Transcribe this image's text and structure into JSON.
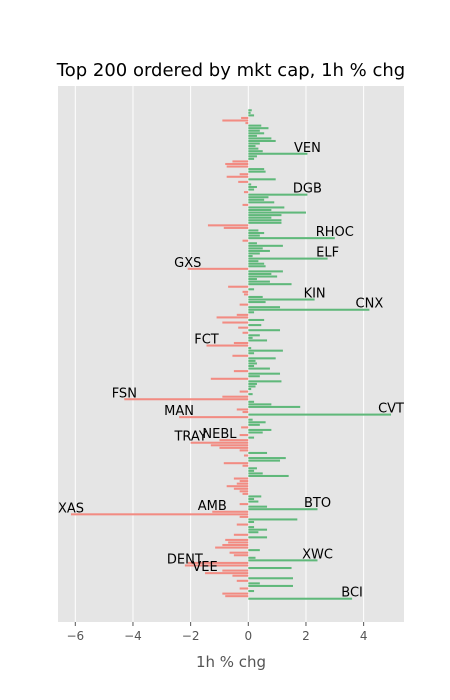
{
  "chart_data": {
    "type": "bar",
    "orientation": "horizontal",
    "title": "Top 200 ordered by mkt cap, 1h % chg",
    "xlabel": "1h % chg",
    "ylabel": "",
    "xlim": [
      -6.6,
      5.4
    ],
    "xticks": [
      -6,
      -4,
      -2,
      0,
      2,
      4
    ],
    "xtick_labels": [
      "−6",
      "−4",
      "−2",
      "0",
      "2",
      "4"
    ],
    "grid": true,
    "colors": {
      "positive": "#5fb87a",
      "negative": "#f28b82",
      "background": "#e5e5e5",
      "grid": "#ffffff"
    },
    "values": [
      0.12,
      0.08,
      0.2,
      -0.25,
      -0.9,
      -0.1,
      0.45,
      0.7,
      0.4,
      0.55,
      0.3,
      0.8,
      0.95,
      0.4,
      0.25,
      0.35,
      0.5,
      2.05,
      0.3,
      0.2,
      -0.55,
      -0.8,
      -0.75,
      0.55,
      0.6,
      -0.3,
      -0.75,
      0.95,
      -0.35,
      0.1,
      0.3,
      0.2,
      -0.15,
      2.05,
      0.7,
      0.55,
      0.9,
      -0.2,
      1.25,
      0.8,
      2.0,
      1.15,
      0.8,
      1.15,
      1.15,
      -1.4,
      -0.85,
      0.35,
      0.55,
      0.4,
      3.0,
      -0.2,
      0.3,
      1.2,
      0.5,
      0.75,
      0.4,
      0.15,
      2.75,
      0.35,
      0.55,
      0.6,
      -2.1,
      1.2,
      0.8,
      1.0,
      0.3,
      0.75,
      1.5,
      -0.7,
      0.2,
      -0.2,
      -0.15,
      0.5,
      2.3,
      0.6,
      -0.3,
      1.1,
      4.2,
      0.2,
      -0.4,
      -1.1,
      0.55,
      -0.9,
      0.45,
      -0.35,
      1.1,
      -0.2,
      0.4,
      0.15,
      0.65,
      -0.5,
      -1.45,
      0.1,
      1.2,
      0.2,
      -0.55,
      0.95,
      0.25,
      0.3,
      0.2,
      0.75,
      -0.5,
      1.1,
      0.4,
      -1.3,
      1.15,
      0.3,
      0.25,
      0.1,
      -0.3,
      0.15,
      -0.9,
      -4.3,
      0.2,
      0.8,
      1.8,
      -0.4,
      -0.2,
      4.95,
      -2.4,
      0.15,
      0.6,
      0.4,
      -0.25,
      0.8,
      0.5,
      -0.3,
      0.2,
      -1.0,
      -2.0,
      -1.3,
      -1.0,
      -0.3,
      0.65,
      -0.15,
      1.3,
      1.1,
      -0.85,
      -0.2,
      0.3,
      0.2,
      0.5,
      1.4,
      -0.5,
      -0.3,
      -0.4,
      -0.75,
      -0.5,
      -0.3,
      -0.2,
      0.45,
      0.2,
      0.35,
      -0.3,
      0.65,
      2.4,
      -1.25,
      -6.15,
      -0.3,
      1.7,
      0.2,
      -0.4,
      0.2,
      0.65,
      0.35,
      -0.5,
      0.65,
      -0.8,
      -0.7,
      -0.9,
      -1.15,
      0.4,
      -0.65,
      -0.5,
      0.25,
      2.4,
      -2.1,
      -2.2,
      1.5,
      -0.9,
      -1.5,
      -0.55,
      1.55,
      -0.4,
      0.4,
      1.55,
      -0.3,
      0.2,
      -0.9,
      -0.8,
      3.6
    ],
    "labeled_points": [
      {
        "index": 17,
        "text": "VEN",
        "value": 2.05
      },
      {
        "index": 33,
        "text": "DGB",
        "value": 2.05
      },
      {
        "index": 50,
        "text": "RHOC",
        "value": 3.0
      },
      {
        "index": 58,
        "text": "ELF",
        "value": 2.75
      },
      {
        "index": 62,
        "text": "GXS",
        "value": -2.1
      },
      {
        "index": 74,
        "text": "KIN",
        "value": 2.3
      },
      {
        "index": 78,
        "text": "CNX",
        "value": 4.2
      },
      {
        "index": 92,
        "text": "FCT",
        "value": -1.45
      },
      {
        "index": 113,
        "text": "FSN",
        "value": -4.3
      },
      {
        "index": 119,
        "text": "CVT",
        "value": 4.95
      },
      {
        "index": 120,
        "text": "MAN",
        "value": -2.4
      },
      {
        "index": 129,
        "text": "NEBL",
        "value": -1.0
      },
      {
        "index": 130,
        "text": "TRAY",
        "value": -2.0
      },
      {
        "index": 156,
        "text": "BTO",
        "value": 2.4
      },
      {
        "index": 157,
        "text": "AMB",
        "value": -1.25
      },
      {
        "index": 158,
        "text": "XAS",
        "value": -6.15
      },
      {
        "index": 176,
        "text": "XWC",
        "value": 2.4
      },
      {
        "index": 178,
        "text": "DENT",
        "value": -2.2
      },
      {
        "index": 181,
        "text": "VEE",
        "value": -1.5
      },
      {
        "index": 191,
        "text": "BCI",
        "value": 3.6
      }
    ]
  }
}
